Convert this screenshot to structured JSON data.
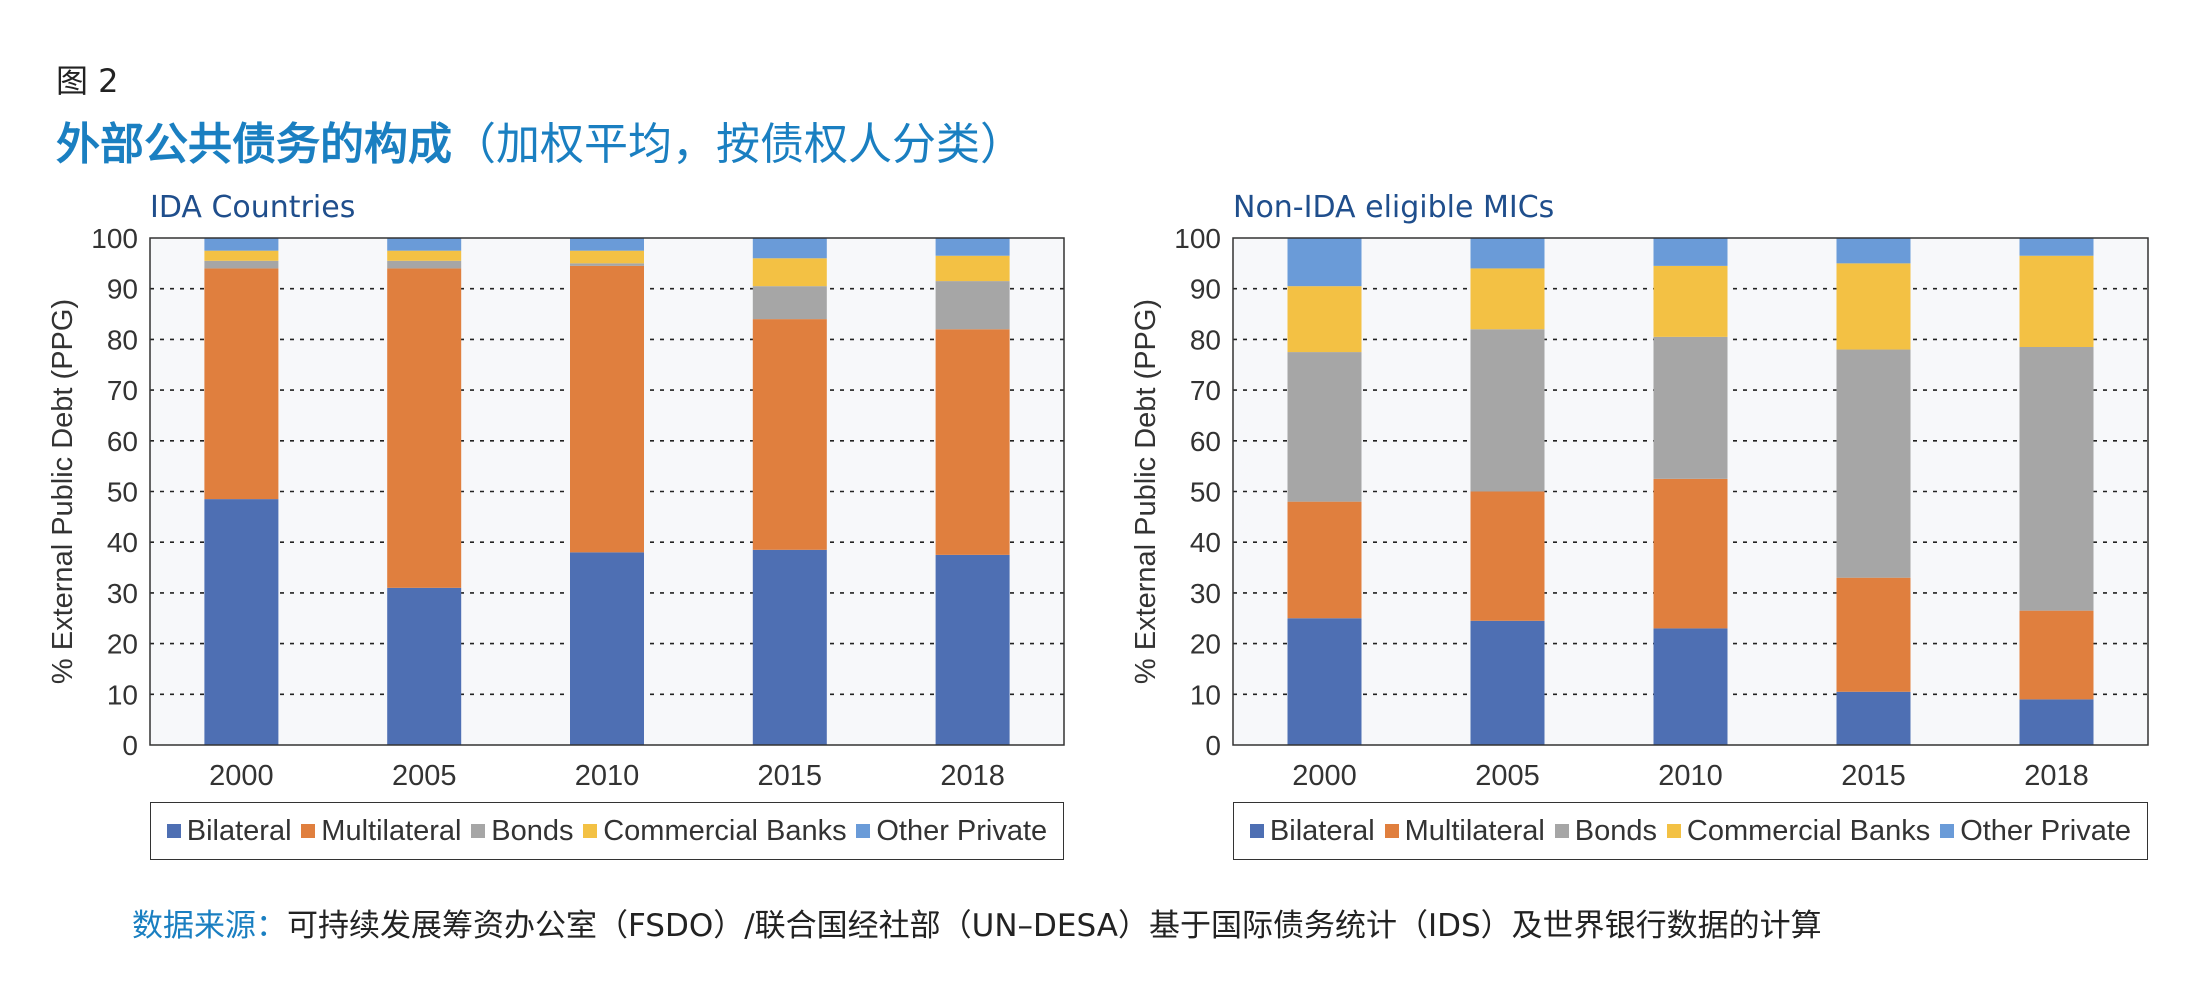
{
  "figure": {
    "label": "图 2",
    "title_main": "外部公共债务的构成",
    "title_sub": "（加权平均，按债权人分类）"
  },
  "source": {
    "lead": "数据来源：",
    "text": "可持续发展筹资办公室（FSDO）/联合国经社部（UN–DESA）基于国际债务统计（IDS）及世界银行数据的计算"
  },
  "colors": {
    "Bilateral": "#4e6fb3",
    "Multilateral": "#e07f3e",
    "Bonds": "#a6a6a6",
    "Commercial Banks": "#f3c144",
    "Other Private": "#6a9bd8"
  },
  "chart_data": [
    {
      "type": "bar",
      "stacked": true,
      "title": "IDA Countries",
      "xlabel": "",
      "ylabel": "% External Public Debt (PPG)",
      "ylim": [
        0,
        100
      ],
      "yticks": [
        0,
        10,
        20,
        30,
        40,
        50,
        60,
        70,
        80,
        90,
        100
      ],
      "grid": "horizontal dotted",
      "legend_position": "bottom",
      "categories": [
        "2000",
        "2005",
        "2010",
        "2015",
        "2018"
      ],
      "series": [
        {
          "name": "Bilateral",
          "values": [
            48.5,
            31,
            38,
            38.5,
            37.5
          ]
        },
        {
          "name": "Multilateral",
          "values": [
            45.5,
            63,
            56.5,
            45.5,
            44.5
          ]
        },
        {
          "name": "Bonds",
          "values": [
            1.5,
            1.5,
            0.5,
            6.5,
            9.5
          ]
        },
        {
          "name": "Commercial Banks",
          "values": [
            2,
            2,
            2.5,
            5.5,
            5
          ]
        },
        {
          "name": "Other Private",
          "values": [
            2.5,
            2.5,
            2.5,
            4,
            3.5
          ]
        }
      ]
    },
    {
      "type": "bar",
      "stacked": true,
      "title": "Non-IDA eligible MICs",
      "xlabel": "",
      "ylabel": "% External Public Debt (PPG)",
      "ylim": [
        0,
        100
      ],
      "yticks": [
        0,
        10,
        20,
        30,
        40,
        50,
        60,
        70,
        80,
        90,
        100
      ],
      "grid": "horizontal dotted",
      "legend_position": "bottom",
      "categories": [
        "2000",
        "2005",
        "2010",
        "2015",
        "2018"
      ],
      "series": [
        {
          "name": "Bilateral",
          "values": [
            25,
            24.5,
            23,
            10.5,
            9
          ]
        },
        {
          "name": "Multilateral",
          "values": [
            23,
            25.5,
            29.5,
            22.5,
            17.5
          ]
        },
        {
          "name": "Bonds",
          "values": [
            29.5,
            32,
            28,
            45,
            52
          ]
        },
        {
          "name": "Commercial Banks",
          "values": [
            13,
            12,
            14,
            17,
            18
          ]
        },
        {
          "name": "Other Private",
          "values": [
            9.5,
            6,
            5.5,
            5,
            3.5
          ]
        }
      ]
    }
  ]
}
